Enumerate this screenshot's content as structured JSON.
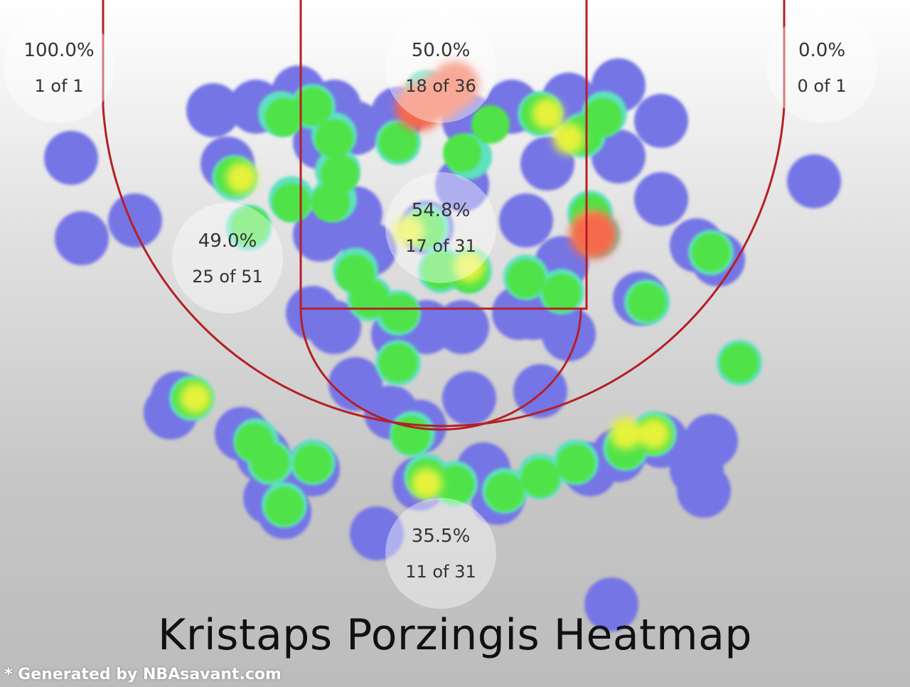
{
  "chart_data": {
    "type": "heatmap",
    "title": "Kristaps Porzingis Heatmap",
    "credit": "* Generated by NBAsavant.com",
    "colors": {
      "cold": "#7474e6",
      "cool": "#5fe0c0",
      "mid": "#4fe34a",
      "warm": "#e6f23a",
      "hot": "#f56b4d",
      "court_line": "#b42025"
    },
    "zones": [
      {
        "name": "left-corner",
        "pct": "100.0%",
        "made_of": "1 of 1",
        "made": 1,
        "attempts": 1
      },
      {
        "name": "restricted-area",
        "pct": "50.0%",
        "made_of": "18 of 36",
        "made": 18,
        "attempts": 36
      },
      {
        "name": "right-corner",
        "pct": "0.0%",
        "made_of": "0 of 1",
        "made": 0,
        "attempts": 1
      },
      {
        "name": "left-wing-midrange",
        "pct": "49.0%",
        "made_of": "25 of 51",
        "made": 25,
        "attempts": 51
      },
      {
        "name": "paint-non-ra",
        "pct": "54.8%",
        "made_of": "17 of 31",
        "made": 17,
        "attempts": 31
      },
      {
        "name": "top-of-key-three",
        "pct": "35.5%",
        "made_of": "11 of 31",
        "made": 11,
        "attempts": 31
      }
    ]
  }
}
